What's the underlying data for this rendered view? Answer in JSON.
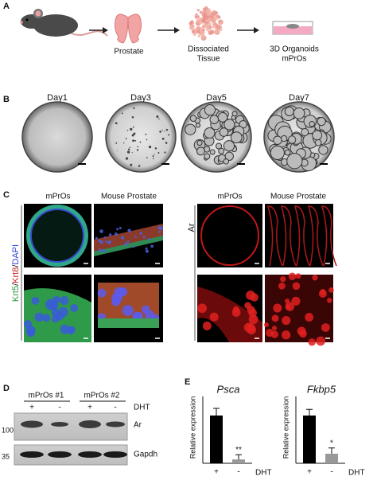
{
  "panels": {
    "A": {
      "label": "A",
      "steps": [
        [
          "Prostate"
        ],
        [
          "Dissociated",
          "Tissue"
        ],
        [
          "3D Organoids",
          "mPrOs"
        ]
      ]
    },
    "B": {
      "label": "B",
      "days": [
        "Day1",
        "Day3",
        "Day5",
        "Day7"
      ]
    },
    "C": {
      "label": "C",
      "columns": [
        "mPrOs",
        "Mouse Prostate"
      ],
      "stain_left": [
        "Krt5",
        "Krt8",
        "DAPI"
      ],
      "separator": "/",
      "stain_right": "Ar"
    },
    "D": {
      "label": "D",
      "groups": [
        "mPrOs #1",
        "mPrOs #2"
      ],
      "treatment": "DHT",
      "signs": [
        "+",
        "-",
        "+",
        "-"
      ],
      "markers": [
        "100",
        "35"
      ],
      "bands": [
        "Ar",
        "Gapdh"
      ]
    },
    "E": {
      "label": "E",
      "charts": [
        {
          "type": "bar",
          "title": "Psca",
          "ylabel": "Relative expression",
          "xlabel": "DHT",
          "categories": [
            "+",
            "-"
          ],
          "values": [
            1.0,
            0.08
          ],
          "errors": [
            0.15,
            0.1
          ],
          "significance": [
            null,
            "**"
          ],
          "color": [
            "#000000",
            "#999999"
          ],
          "ylim": [
            0,
            1.5
          ]
        },
        {
          "type": "bar",
          "title": "Fkbp5",
          "ylabel": "Relative expression",
          "xlabel": "DHT",
          "categories": [
            "+",
            "-"
          ],
          "values": [
            1.0,
            0.2
          ],
          "errors": [
            0.13,
            0.12
          ],
          "significance": [
            null,
            "*"
          ],
          "color": [
            "#000000",
            "#999999"
          ],
          "ylim": [
            0,
            1.5
          ]
        }
      ]
    }
  }
}
